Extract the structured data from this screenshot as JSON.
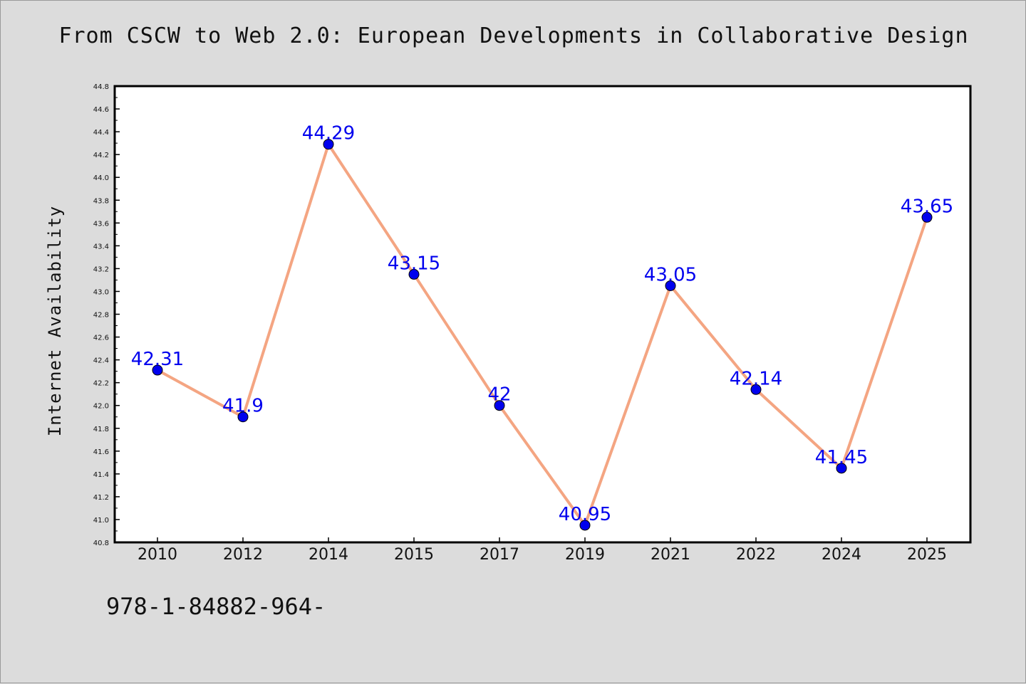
{
  "chart_data": {
    "type": "line",
    "title": "From CSCW to Web 2.0: European Developments in Collaborative Design",
    "xlabel": "",
    "ylabel": "Internet Availability",
    "categories": [
      "2010",
      "2012",
      "2014",
      "2015",
      "2017",
      "2019",
      "2021",
      "2022",
      "2024",
      "2025"
    ],
    "series": [
      {
        "values": [
          42.31,
          41.9,
          44.29,
          43.15,
          42.0,
          40.95,
          43.05,
          42.14,
          41.45,
          43.65
        ],
        "labels": [
          "42.31",
          "41.9",
          "44.29",
          "43.15",
          "42",
          "40.95",
          "43.05",
          "42.14",
          "41.45",
          "43.65"
        ],
        "line_color": "#f4a582",
        "marker_color": "#0000ee"
      }
    ],
    "ylim": [
      40.8,
      44.8
    ],
    "yticks": [
      "40.8",
      "41.0",
      "41.2",
      "41.4",
      "41.6",
      "41.8",
      "42.0",
      "42.2",
      "42.4",
      "42.6",
      "42.8",
      "43.0",
      "43.2",
      "43.4",
      "43.6",
      "43.8",
      "44.0",
      "44.2",
      "44.4",
      "44.6",
      "44.8"
    ],
    "grid": false,
    "legend": "none",
    "label_color": "#0000ee",
    "plot_background": "#ffffff",
    "figure_background": "#dcdcdc"
  },
  "footer": {
    "text": "978-1-84882-964-"
  }
}
